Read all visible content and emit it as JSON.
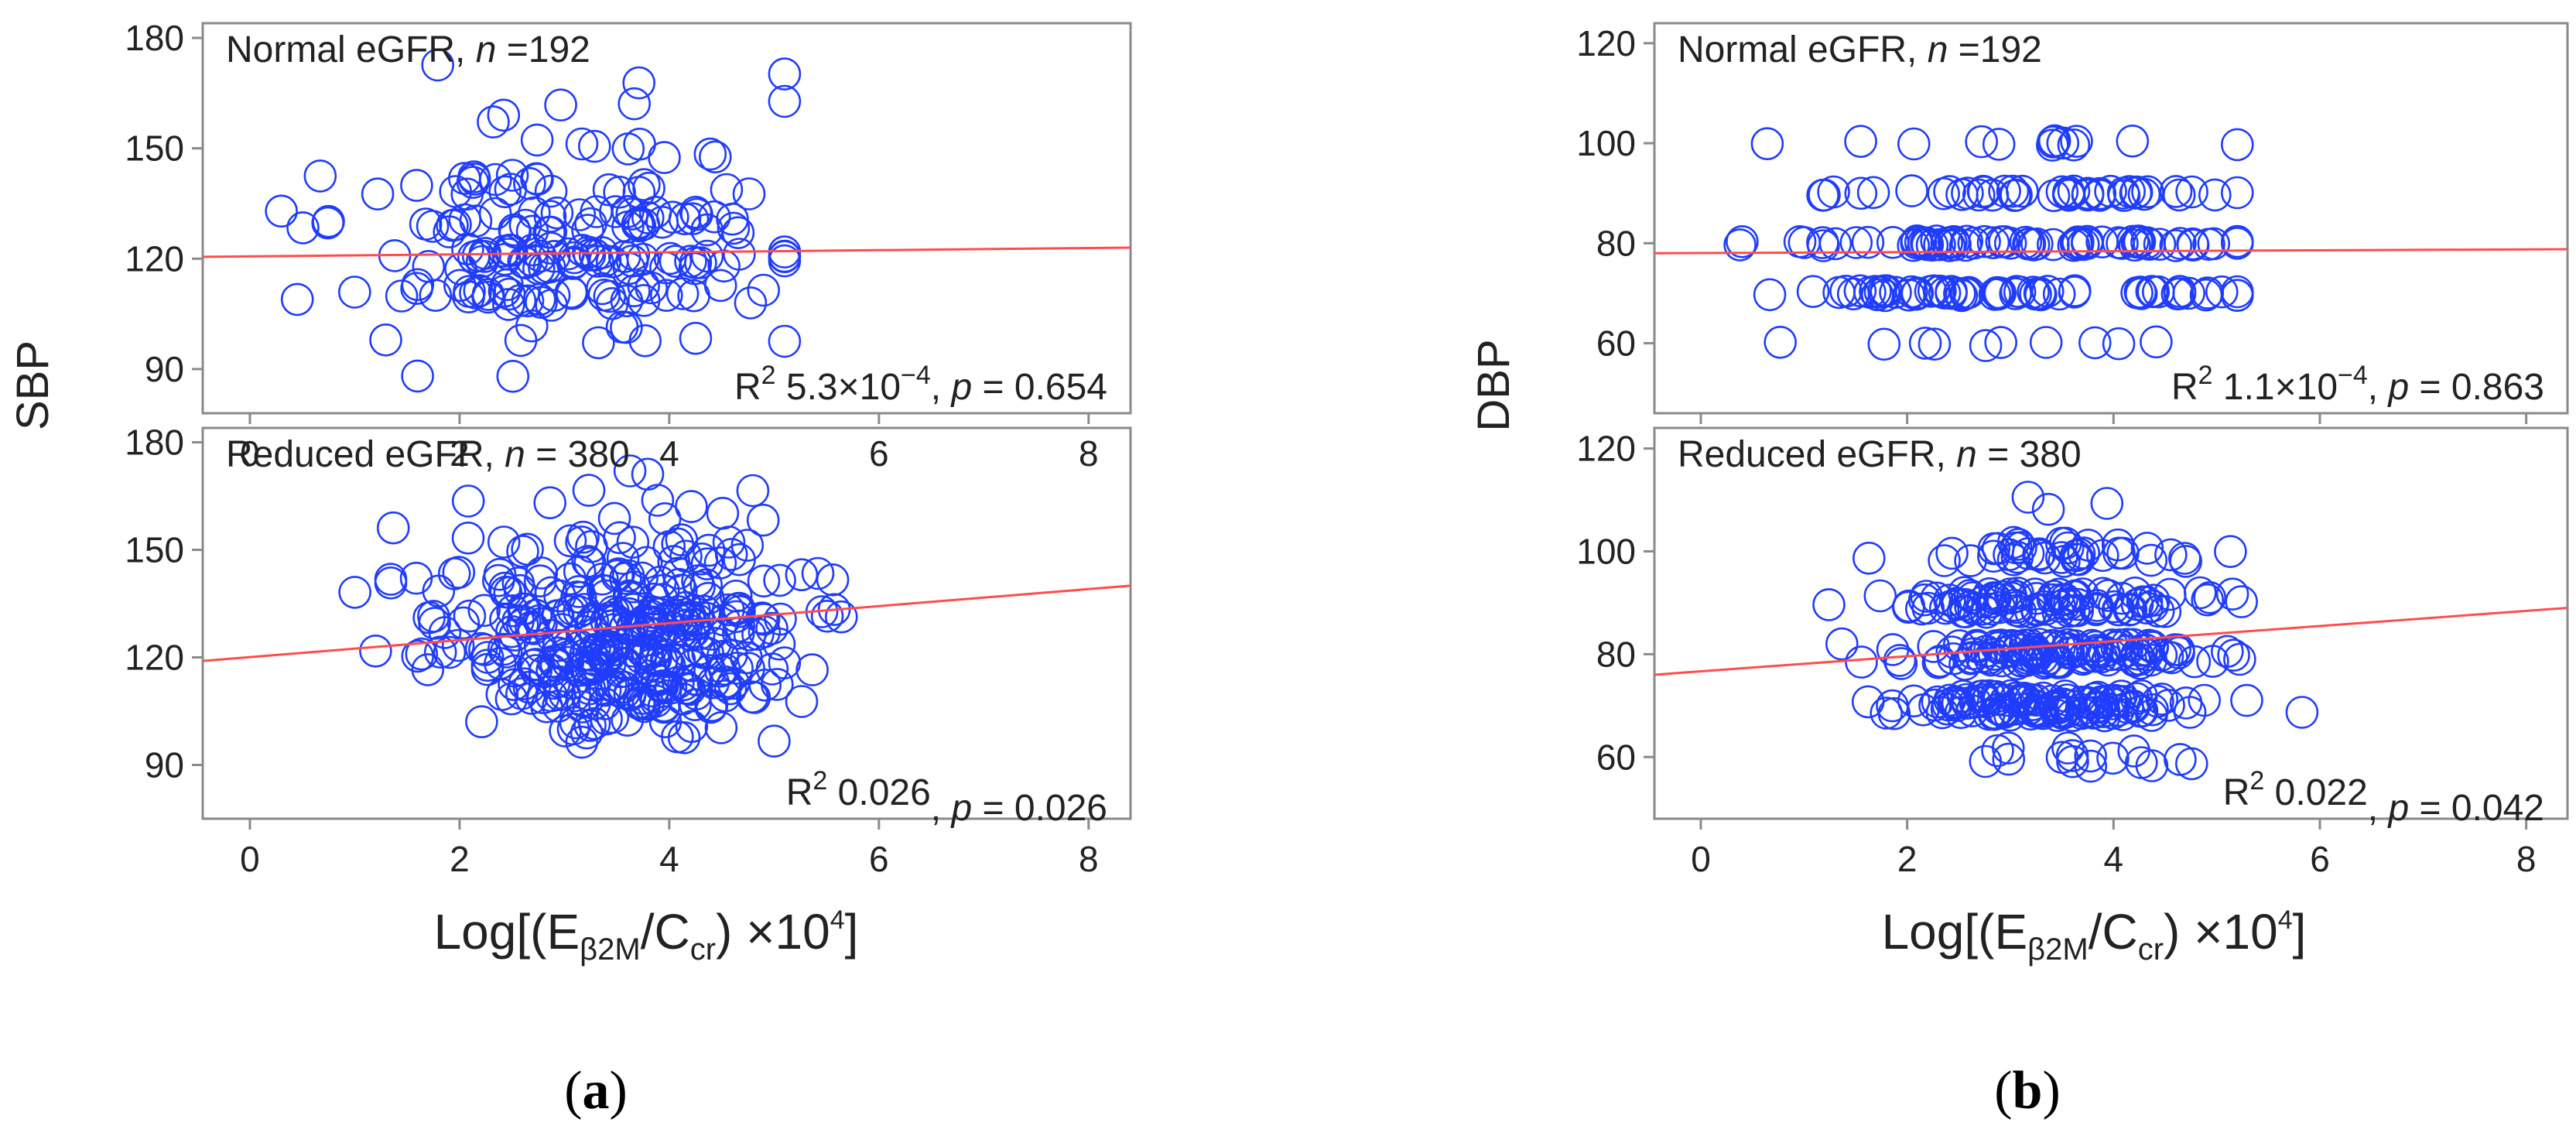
{
  "figure": {
    "panel_a_label": "a",
    "panel_b_label": "b",
    "xlabel_prefix": "Log[(E",
    "xlabel_sub1": "β2M",
    "xlabel_mid": "/C",
    "xlabel_sub2": "cr",
    "xlabel_suffix": ") ×10",
    "xlabel_sup": "4",
    "xlabel_close": "]"
  },
  "chart_data": [
    {
      "id": "a-top",
      "type": "scatter",
      "panel": "a",
      "ylabel": "SBP",
      "ylim": [
        78,
        184
      ],
      "xlim": [
        -0.45,
        8.4
      ],
      "yticks": [
        90,
        120,
        150,
        180
      ],
      "xticks": [
        0,
        2,
        4,
        6,
        8
      ],
      "title_text": "Normal eGFR, ",
      "title_n": "n",
      "title_value": " =192",
      "stat_r": "R",
      "stat_r_sup": "2",
      "stat_value": " 5.3×10",
      "stat_exp": "−4",
      "stat_mid": ", ",
      "stat_p": "p",
      "stat_p_value": " = 0.654",
      "fit": {
        "x": [
          -0.45,
          8.4
        ],
        "y": [
          120.5,
          123
        ]
      },
      "seed": 11,
      "n_points": 192,
      "x_mean": 3.1,
      "x_sd": 1.05,
      "x_range": [
        0.3,
        5.1
      ],
      "y_levels": [
        90,
        100,
        110,
        120,
        130,
        140,
        150,
        160,
        170
      ],
      "y_weights": [
        2,
        8,
        22,
        30,
        22,
        10,
        5,
        2,
        1
      ],
      "y_jitter": 3
    },
    {
      "id": "a-bottom",
      "type": "scatter",
      "panel": "a",
      "ylabel": "",
      "ylim": [
        75,
        184
      ],
      "xlim": [
        -0.45,
        8.4
      ],
      "yticks": [
        90,
        120,
        150,
        180
      ],
      "xticks": [
        0,
        2,
        4,
        6,
        8
      ],
      "title_text": "Reduced eGFR, ",
      "title_n": "n",
      "title_value": " = 380",
      "stat_r": "R",
      "stat_r_sup": "2",
      "stat_value": " 0.026",
      "stat_exp": "",
      "stat_mid": ", ",
      "stat_p": "p",
      "stat_p_value": " = 0.026",
      "fit": {
        "x": [
          -0.45,
          8.4
        ],
        "y": [
          119,
          140
        ]
      },
      "seed": 23,
      "n_points": 380,
      "x_mean": 3.5,
      "x_sd": 0.85,
      "x_range": [
        0.8,
        6.7
      ],
      "y_levels": [
        100,
        110,
        120,
        130,
        140,
        150,
        160,
        170
      ],
      "y_weights": [
        3,
        20,
        25,
        25,
        15,
        7,
        3,
        2
      ],
      "y_jitter": 4
    },
    {
      "id": "b-top",
      "type": "scatter",
      "panel": "b",
      "ylabel": "DBP",
      "ylim": [
        46,
        124
      ],
      "xlim": [
        -0.45,
        8.4
      ],
      "yticks": [
        60,
        80,
        100,
        120
      ],
      "xticks": [
        0,
        2,
        4,
        6,
        8
      ],
      "title_text": "Normal eGFR, ",
      "title_n": "n",
      "title_value": " =192",
      "stat_r": "R",
      "stat_r_sup": "2",
      "stat_value": " 1.1×10",
      "stat_exp": "−4",
      "stat_mid": ", ",
      "stat_p": "p",
      "stat_p_value": " = 0.863",
      "fit": {
        "x": [
          -0.45,
          8.4
        ],
        "y": [
          78,
          78.8
        ]
      },
      "seed": 37,
      "n_points": 192,
      "x_mean": 3.0,
      "x_sd": 1.1,
      "x_range": [
        0.3,
        5.2
      ],
      "y_levels": [
        50,
        60,
        70,
        80,
        90,
        100,
        120
      ],
      "y_weights": [
        1,
        6,
        30,
        35,
        22,
        6,
        0.3
      ],
      "y_jitter": 0.5
    },
    {
      "id": "b-bottom",
      "type": "scatter",
      "panel": "b",
      "ylabel": "",
      "ylim": [
        48,
        124
      ],
      "xlim": [
        -0.45,
        8.4
      ],
      "yticks": [
        60,
        80,
        100,
        120
      ],
      "xticks": [
        0,
        2,
        4,
        6,
        8
      ],
      "title_text": "Reduced eGFR, ",
      "title_n": "n",
      "title_value": " = 380",
      "stat_r": "R",
      "stat_r_sup": "2",
      "stat_value": " 0.022",
      "stat_exp": "",
      "stat_mid": ", ",
      "stat_p": "p",
      "stat_p_value": " = 0.042",
      "fit": {
        "x": [
          -0.45,
          8.4
        ],
        "y": [
          76,
          89
        ]
      },
      "seed": 53,
      "n_points": 380,
      "x_mean": 3.5,
      "x_sd": 0.85,
      "x_range": [
        0.8,
        6.7
      ],
      "y_levels": [
        60,
        70,
        80,
        90,
        100,
        110
      ],
      "y_weights": [
        4,
        30,
        30,
        25,
        10,
        1.5
      ],
      "y_jitter": 2
    }
  ]
}
